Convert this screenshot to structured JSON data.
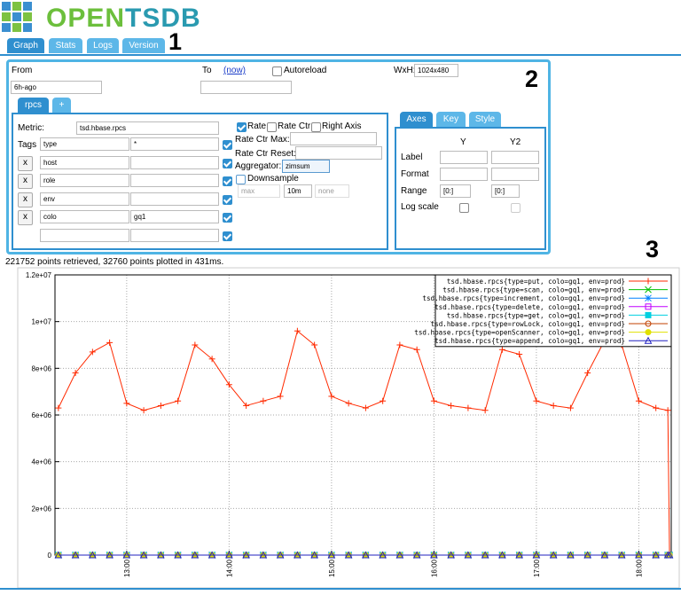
{
  "header": {
    "logo": [
      "OPEN",
      "TSDB"
    ],
    "tabs": [
      "Graph",
      "Stats",
      "Logs",
      "Version"
    ]
  },
  "annotations": [
    "1",
    "2",
    "3"
  ],
  "query": {
    "from_label": "From",
    "from": "6h-ago",
    "to_label": "To",
    "now_link": "(now)",
    "autoreload": "Autoreload",
    "wxh_label": "WxH:",
    "wxh": "1024x480"
  },
  "metric_tabs": [
    "rpcs",
    "+"
  ],
  "metric": {
    "label": "Metric:",
    "value": "tsd.hbase.rpcs",
    "tags_label": "Tags",
    "remove": "x",
    "tags": [
      {
        "key": "type",
        "value": "*"
      },
      {
        "key": "host"
      },
      {
        "key": "role"
      },
      {
        "key": "env"
      },
      {
        "key": "colo",
        "value": "gq1"
      }
    ]
  },
  "options": {
    "rate": "Rate",
    "rate_ctr": "Rate Ctr",
    "right_axis": "Right Axis",
    "rate_ctr_max": "Rate Ctr Max:",
    "rate_ctr_reset": "Rate Ctr Reset:",
    "aggregator_label": "Aggregator:",
    "aggregator": "zimsum",
    "downsample": "Downsample",
    "downsample_fn": "max",
    "downsample_interval": "10m",
    "fill": "none"
  },
  "axes": {
    "tabs": [
      "Axes",
      "Key",
      "Style"
    ],
    "columns": [
      "Y",
      "Y2"
    ],
    "rows": [
      "Label",
      "Format",
      "Range",
      "Log scale"
    ],
    "range": [
      "[0:]",
      "[0:]"
    ]
  },
  "status": "221752 points retrieved, 32760 points plotted in 431ms.",
  "chart_data": {
    "type": "line",
    "legend": "top-right",
    "grid": true,
    "x": [
      "12:20",
      "12:30",
      "12:40",
      "12:50",
      "13:00",
      "13:10",
      "13:20",
      "13:30",
      "13:40",
      "13:50",
      "14:00",
      "14:10",
      "14:20",
      "14:30",
      "14:40",
      "14:50",
      "15:00",
      "15:10",
      "15:20",
      "15:30",
      "15:40",
      "15:50",
      "16:00",
      "16:10",
      "16:20",
      "16:30",
      "16:40",
      "16:50",
      "17:00",
      "17:10",
      "17:20",
      "17:30",
      "17:40",
      "17:50",
      "18:00",
      "18:10",
      "18:17",
      "18:18"
    ],
    "xlim": [
      "12:18",
      "18:19"
    ],
    "xticks": [
      "13:00",
      "14:00",
      "15:00",
      "16:00",
      "17:00",
      "18:00"
    ],
    "ylim": [
      0,
      12000000
    ],
    "yticks": [
      0,
      {
        "value": 2000000,
        "label": "2e+06"
      },
      {
        "value": 4000000,
        "label": "4e+06"
      },
      {
        "value": 6000000,
        "label": "6e+06"
      },
      {
        "value": 8000000,
        "label": "8e+06"
      },
      {
        "value": 10000000,
        "label": "1e+07"
      },
      {
        "value": 12000000,
        "label": "1.2e+07"
      }
    ],
    "series": [
      {
        "name": "tsd.hbase.rpcs{type=put, colo=gq1, env=prod}",
        "color": "#ff2a00",
        "marker": "plus",
        "values": [
          6300000,
          7800000,
          8700000,
          9100000,
          6500000,
          6200000,
          6400000,
          6600000,
          9000000,
          8400000,
          7300000,
          6400000,
          6600000,
          6800000,
          9600000,
          9000000,
          6800000,
          6500000,
          6300000,
          6600000,
          9000000,
          8800000,
          6600000,
          6400000,
          6300000,
          6200000,
          8800000,
          8600000,
          6600000,
          6400000,
          6300000,
          7800000,
          9200000,
          9000000,
          6600000,
          6300000,
          6200000,
          0
        ]
      },
      {
        "name": "tsd.hbase.rpcs{type=scan, colo=gq1, env=prod}",
        "color": "#00c000",
        "marker": "cross",
        "values": [
          0,
          0,
          0,
          0,
          0,
          0,
          0,
          0,
          0,
          0,
          0,
          0,
          0,
          0,
          0,
          0,
          0,
          0,
          0,
          0,
          0,
          0,
          0,
          0,
          0,
          0,
          0,
          0,
          0,
          0,
          0,
          0,
          0,
          0,
          0,
          0,
          0,
          0
        ]
      },
      {
        "name": "tsd.hbase.rpcs{type=increment, colo=gq1, env=prod}",
        "color": "#0080ff",
        "marker": "star",
        "values": [
          0,
          0,
          0,
          0,
          0,
          0,
          0,
          0,
          0,
          0,
          0,
          0,
          0,
          0,
          0,
          0,
          0,
          0,
          0,
          0,
          0,
          0,
          0,
          0,
          0,
          0,
          0,
          0,
          0,
          0,
          0,
          0,
          0,
          0,
          0,
          0,
          0,
          0
        ]
      },
      {
        "name": "tsd.hbase.rpcs{type=delete, colo=gq1, env=prod}",
        "color": "#c000ff",
        "marker": "square",
        "values": [
          0,
          0,
          0,
          0,
          0,
          0,
          0,
          0,
          0,
          0,
          0,
          0,
          0,
          0,
          0,
          0,
          0,
          0,
          0,
          0,
          0,
          0,
          0,
          0,
          0,
          0,
          0,
          0,
          0,
          0,
          0,
          0,
          0,
          0,
          0,
          0,
          0,
          0
        ]
      },
      {
        "name": "tsd.hbase.rpcs{type=get, colo=gq1, env=prod}",
        "color": "#00d0e0",
        "marker": "filled-square",
        "values": [
          0,
          0,
          0,
          0,
          0,
          0,
          0,
          0,
          0,
          0,
          0,
          0,
          0,
          0,
          0,
          0,
          0,
          0,
          0,
          0,
          0,
          0,
          0,
          0,
          0,
          0,
          0,
          0,
          0,
          0,
          0,
          0,
          0,
          0,
          0,
          0,
          0,
          0
        ]
      },
      {
        "name": "tsd.hbase.rpcs{type=rowLock, colo=gq1, env=prod}",
        "color": "#c04000",
        "marker": "circle",
        "values": [
          0,
          0,
          0,
          0,
          0,
          0,
          0,
          0,
          0,
          0,
          0,
          0,
          0,
          0,
          0,
          0,
          0,
          0,
          0,
          0,
          0,
          0,
          0,
          0,
          0,
          0,
          0,
          0,
          0,
          0,
          0,
          0,
          0,
          0,
          0,
          0,
          0,
          0
        ]
      },
      {
        "name": "tsd.hbase.rpcs{type=openScanner, colo=gq1, env=prod}",
        "color": "#e0e000",
        "marker": "filled-circle",
        "values": [
          0,
          0,
          0,
          0,
          0,
          0,
          0,
          0,
          0,
          0,
          0,
          0,
          0,
          0,
          0,
          0,
          0,
          0,
          0,
          0,
          0,
          0,
          0,
          0,
          0,
          0,
          0,
          0,
          0,
          0,
          0,
          0,
          0,
          0,
          0,
          0,
          0,
          0
        ]
      },
      {
        "name": "tsd.hbase.rpcs{type=append, colo=gq1, env=prod}",
        "color": "#2020c0",
        "marker": "triangle",
        "values": [
          0,
          0,
          0,
          0,
          0,
          0,
          0,
          0,
          0,
          0,
          0,
          0,
          0,
          0,
          0,
          0,
          0,
          0,
          0,
          0,
          0,
          0,
          0,
          0,
          0,
          0,
          0,
          0,
          0,
          0,
          0,
          0,
          0,
          0,
          0,
          0,
          0,
          0
        ]
      }
    ]
  }
}
